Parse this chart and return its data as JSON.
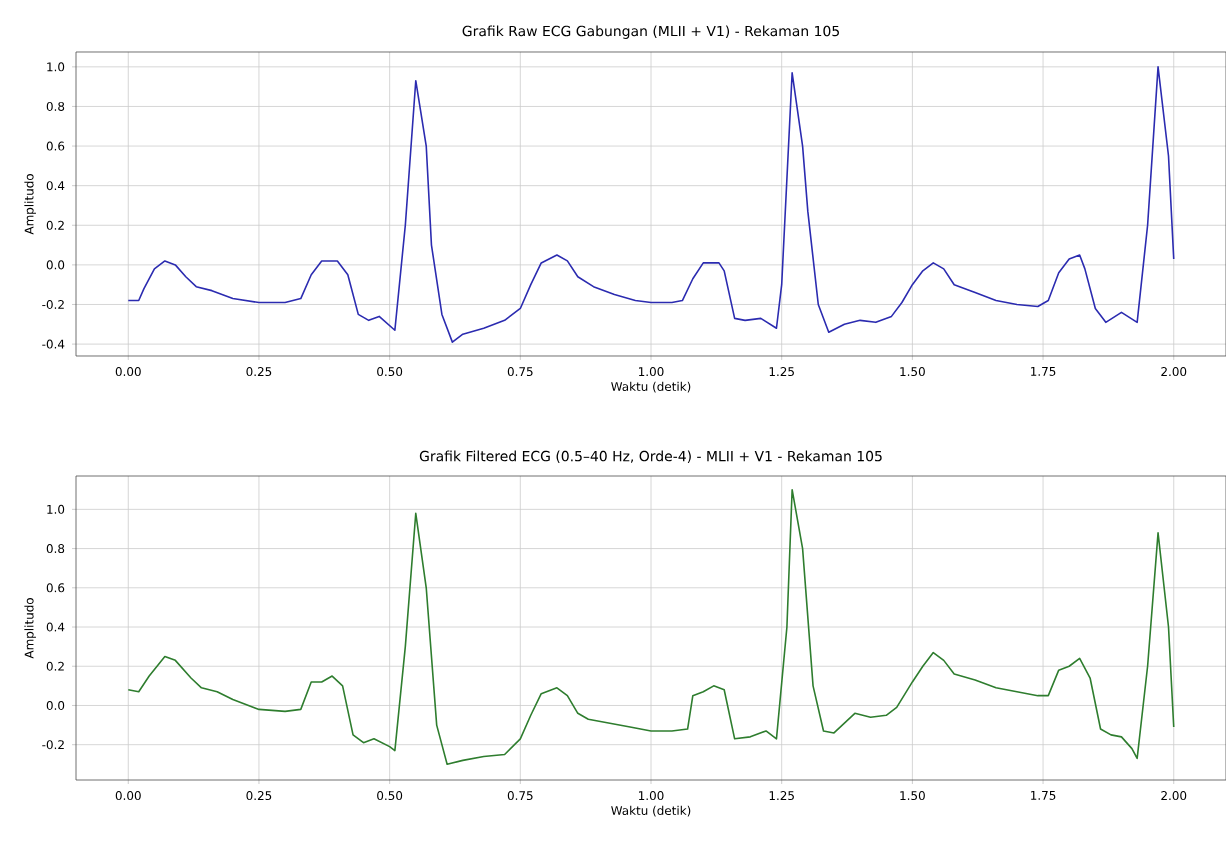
{
  "chart_data": [
    {
      "type": "line",
      "title": "Grafik Raw ECG Gabungan (MLII + V1) - Rekaman 105",
      "xlabel": "Waktu (detik)",
      "ylabel": "Amplitudo",
      "grid": true,
      "xlim": [
        -0.1,
        2.1
      ],
      "ylim": [
        -0.46,
        1.075
      ],
      "xticks": [
        {
          "value": 0,
          "label": "0.00"
        },
        {
          "value": 0.25,
          "label": "0.25"
        },
        {
          "value": 0.5,
          "label": "0.50"
        },
        {
          "value": 0.75,
          "label": "0.75"
        },
        {
          "value": 1,
          "label": "1.00"
        },
        {
          "value": 1.25,
          "label": "1.25"
        },
        {
          "value": 1.5,
          "label": "1.50"
        },
        {
          "value": 1.75,
          "label": "1.75"
        },
        {
          "value": 2,
          "label": "2.00"
        }
      ],
      "yticks": [
        {
          "value": -0.4,
          "label": "-0.4"
        },
        {
          "value": -0.2,
          "label": "-0.2"
        },
        {
          "value": 0,
          "label": "0.0"
        },
        {
          "value": 0.2,
          "label": "0.2"
        },
        {
          "value": 0.4,
          "label": "0.4"
        },
        {
          "value": 0.6,
          "label": "0.6"
        },
        {
          "value": 0.8,
          "label": "0.8"
        },
        {
          "value": 1,
          "label": "1.0"
        }
      ],
      "series": [
        {
          "color": "#2b2bb0",
          "x": [
            0.0,
            0.02,
            0.03,
            0.05,
            0.07,
            0.09,
            0.11,
            0.13,
            0.16,
            0.2,
            0.25,
            0.3,
            0.33,
            0.35,
            0.37,
            0.4,
            0.42,
            0.44,
            0.46,
            0.48,
            0.51,
            0.53,
            0.55,
            0.57,
            0.58,
            0.6,
            0.62,
            0.64,
            0.68,
            0.72,
            0.75,
            0.77,
            0.79,
            0.82,
            0.84,
            0.86,
            0.89,
            0.93,
            0.97,
            1.0,
            1.04,
            1.06,
            1.08,
            1.1,
            1.13,
            1.14,
            1.16,
            1.18,
            1.21,
            1.24,
            1.25,
            1.27,
            1.29,
            1.3,
            1.32,
            1.34,
            1.37,
            1.4,
            1.43,
            1.46,
            1.48,
            1.5,
            1.52,
            1.54,
            1.56,
            1.58,
            1.62,
            1.66,
            1.7,
            1.74,
            1.76,
            1.78,
            1.8,
            1.82,
            1.83,
            1.85,
            1.87,
            1.9,
            1.93,
            1.95,
            1.97,
            1.99,
            2.0
          ],
          "values": [
            -0.18,
            -0.18,
            -0.12,
            -0.02,
            0.02,
            0.0,
            -0.06,
            -0.11,
            -0.13,
            -0.17,
            -0.19,
            -0.19,
            -0.17,
            -0.05,
            0.02,
            0.02,
            -0.05,
            -0.25,
            -0.28,
            -0.26,
            -0.33,
            0.2,
            0.93,
            0.6,
            0.1,
            -0.25,
            -0.39,
            -0.35,
            -0.32,
            -0.28,
            -0.22,
            -0.1,
            0.01,
            0.05,
            0.02,
            -0.06,
            -0.11,
            -0.15,
            -0.18,
            -0.19,
            -0.19,
            -0.18,
            -0.07,
            0.01,
            0.01,
            -0.03,
            -0.27,
            -0.28,
            -0.27,
            -0.32,
            -0.1,
            0.97,
            0.6,
            0.27,
            -0.2,
            -0.34,
            -0.3,
            -0.28,
            -0.29,
            -0.26,
            -0.19,
            -0.1,
            -0.03,
            0.01,
            -0.02,
            -0.1,
            -0.14,
            -0.18,
            -0.2,
            -0.21,
            -0.18,
            -0.04,
            0.03,
            0.05,
            -0.02,
            -0.22,
            -0.29,
            -0.24,
            -0.29,
            0.2,
            1.0,
            0.55,
            0.03
          ]
        }
      ]
    },
    {
      "type": "line",
      "title": "Grafik Filtered ECG (0.5–40 Hz, Orde-4) - MLII + V1 - Rekaman 105",
      "xlabel": "Waktu (detik)",
      "ylabel": "Amplitudo",
      "grid": true,
      "xlim": [
        -0.1,
        2.1
      ],
      "ylim": [
        -0.38,
        1.17
      ],
      "xticks": [
        {
          "value": 0,
          "label": "0.00"
        },
        {
          "value": 0.25,
          "label": "0.25"
        },
        {
          "value": 0.5,
          "label": "0.50"
        },
        {
          "value": 0.75,
          "label": "0.75"
        },
        {
          "value": 1,
          "label": "1.00"
        },
        {
          "value": 1.25,
          "label": "1.25"
        },
        {
          "value": 1.5,
          "label": "1.50"
        },
        {
          "value": 1.75,
          "label": "1.75"
        },
        {
          "value": 2,
          "label": "2.00"
        }
      ],
      "yticks": [
        {
          "value": -0.2,
          "label": "-0.2"
        },
        {
          "value": 0,
          "label": "0.0"
        },
        {
          "value": 0.2,
          "label": "0.2"
        },
        {
          "value": 0.4,
          "label": "0.4"
        },
        {
          "value": 0.6,
          "label": "0.6"
        },
        {
          "value": 0.8,
          "label": "0.8"
        },
        {
          "value": 1,
          "label": "1.0"
        }
      ],
      "series": [
        {
          "color": "#2e7d2e",
          "x": [
            0.0,
            0.02,
            0.04,
            0.07,
            0.09,
            0.12,
            0.14,
            0.17,
            0.2,
            0.25,
            0.3,
            0.33,
            0.35,
            0.37,
            0.39,
            0.41,
            0.43,
            0.45,
            0.47,
            0.5,
            0.51,
            0.53,
            0.55,
            0.57,
            0.59,
            0.61,
            0.64,
            0.68,
            0.72,
            0.75,
            0.77,
            0.79,
            0.82,
            0.84,
            0.86,
            0.88,
            0.92,
            0.96,
            1.0,
            1.04,
            1.07,
            1.08,
            1.1,
            1.12,
            1.14,
            1.16,
            1.19,
            1.22,
            1.24,
            1.26,
            1.27,
            1.29,
            1.31,
            1.33,
            1.35,
            1.37,
            1.39,
            1.42,
            1.45,
            1.47,
            1.5,
            1.52,
            1.54,
            1.56,
            1.58,
            1.62,
            1.66,
            1.7,
            1.74,
            1.76,
            1.78,
            1.8,
            1.82,
            1.84,
            1.86,
            1.88,
            1.9,
            1.92,
            1.93,
            1.95,
            1.97,
            1.99,
            2.0
          ],
          "values": [
            0.08,
            0.07,
            0.15,
            0.25,
            0.23,
            0.14,
            0.09,
            0.07,
            0.03,
            -0.02,
            -0.03,
            -0.02,
            0.12,
            0.12,
            0.15,
            0.1,
            -0.15,
            -0.19,
            -0.17,
            -0.21,
            -0.23,
            0.3,
            0.98,
            0.6,
            -0.1,
            -0.3,
            -0.28,
            -0.26,
            -0.25,
            -0.17,
            -0.05,
            0.06,
            0.09,
            0.05,
            -0.04,
            -0.07,
            -0.09,
            -0.11,
            -0.13,
            -0.13,
            -0.12,
            0.05,
            0.07,
            0.1,
            0.08,
            -0.17,
            -0.16,
            -0.13,
            -0.17,
            0.4,
            1.1,
            0.8,
            0.1,
            -0.13,
            -0.14,
            -0.09,
            -0.04,
            -0.06,
            -0.05,
            -0.01,
            0.12,
            0.2,
            0.27,
            0.23,
            0.16,
            0.13,
            0.09,
            0.07,
            0.05,
            0.05,
            0.18,
            0.2,
            0.24,
            0.14,
            -0.12,
            -0.15,
            -0.16,
            -0.22,
            -0.27,
            0.2,
            0.88,
            0.4,
            -0.11
          ]
        }
      ]
    }
  ]
}
